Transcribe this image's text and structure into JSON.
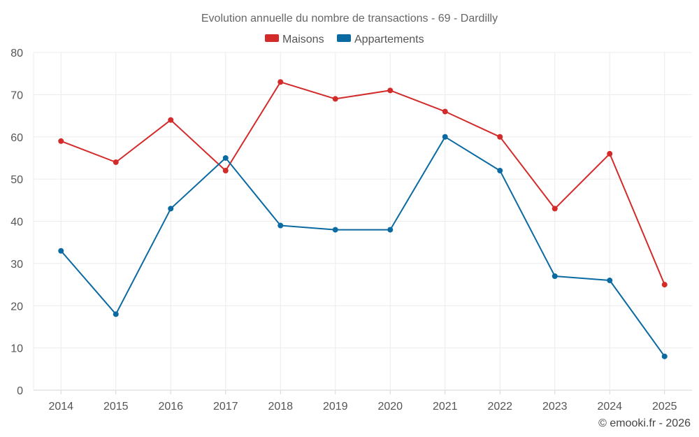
{
  "chart_data": {
    "type": "line",
    "title": "Evolution annuelle du nombre de transactions - 69 - Dardilly",
    "categories": [
      "2014",
      "2015",
      "2016",
      "2017",
      "2018",
      "2019",
      "2020",
      "2021",
      "2022",
      "2023",
      "2024",
      "2025"
    ],
    "series": [
      {
        "name": "Maisons",
        "color": "#d32a2a",
        "values": [
          59,
          54,
          64,
          52,
          73,
          69,
          71,
          66,
          60,
          43,
          56,
          25
        ]
      },
      {
        "name": "Appartements",
        "color": "#0b6aa2",
        "values": [
          33,
          18,
          43,
          55,
          39,
          38,
          38,
          60,
          52,
          27,
          26,
          8
        ]
      }
    ],
    "ylim": [
      0,
      80
    ],
    "yticks": [
      0,
      10,
      20,
      30,
      40,
      50,
      60,
      70,
      80
    ],
    "grid": true,
    "legend_position": "top-center",
    "xlabel": "",
    "ylabel": ""
  },
  "credit": "© emooki.fr - 2026"
}
